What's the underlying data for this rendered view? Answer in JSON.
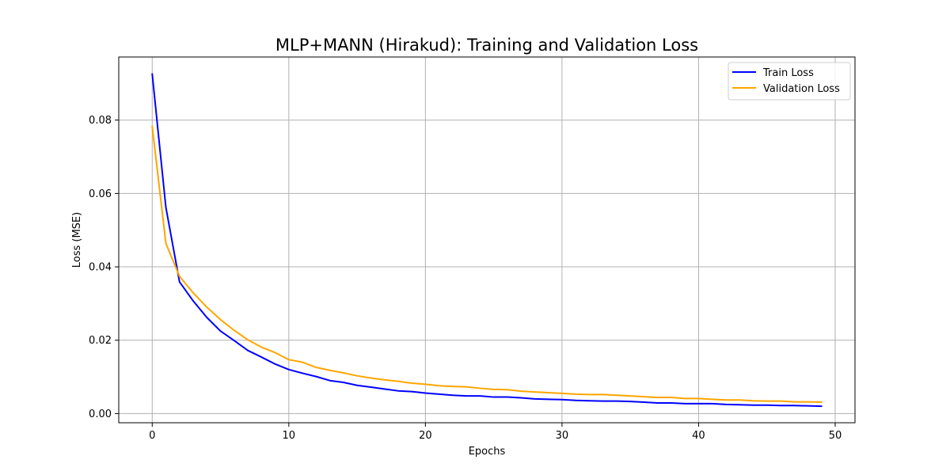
{
  "chart_data": {
    "type": "line",
    "title": "MLP+MANN (Hirakud): Training and Validation Loss",
    "xlabel": "Epochs",
    "ylabel": "Loss (MSE)",
    "xlim": [
      -2.45,
      51.45
    ],
    "ylim": [
      -0.0025,
      0.0972
    ],
    "grid": true,
    "legend_position": "top-right",
    "x_ticks": [
      0,
      10,
      20,
      30,
      40,
      50
    ],
    "x_tick_labels": [
      "0",
      "10",
      "20",
      "30",
      "40",
      "50"
    ],
    "y_ticks": [
      0.0,
      0.02,
      0.04,
      0.06,
      0.08
    ],
    "y_tick_labels": [
      "0.00",
      "0.02",
      "0.04",
      "0.06",
      "0.08"
    ],
    "x": [
      0,
      1,
      2,
      3,
      4,
      5,
      6,
      7,
      8,
      9,
      10,
      11,
      12,
      13,
      14,
      15,
      16,
      17,
      18,
      19,
      20,
      21,
      22,
      23,
      24,
      25,
      26,
      27,
      28,
      29,
      30,
      31,
      32,
      33,
      34,
      35,
      36,
      37,
      38,
      39,
      40,
      41,
      42,
      43,
      44,
      45,
      46,
      47,
      48,
      49
    ],
    "series": [
      {
        "name": "Train Loss",
        "color": "#0000ff",
        "values": [
          0.0926,
          0.0562,
          0.0359,
          0.0307,
          0.0262,
          0.0225,
          0.0199,
          0.0172,
          0.0154,
          0.0135,
          0.012,
          0.011,
          0.0101,
          0.009,
          0.0085,
          0.0077,
          0.0072,
          0.0067,
          0.0062,
          0.006,
          0.0056,
          0.0053,
          0.005,
          0.0048,
          0.0048,
          0.0045,
          0.0045,
          0.0043,
          0.004,
          0.0039,
          0.0038,
          0.0036,
          0.0035,
          0.0034,
          0.0034,
          0.0033,
          0.0031,
          0.0029,
          0.0029,
          0.0027,
          0.0027,
          0.0027,
          0.0025,
          0.0024,
          0.0023,
          0.0023,
          0.0022,
          0.0022,
          0.0021,
          0.002
        ]
      },
      {
        "name": "Validation Loss",
        "color": "#ffa500",
        "values": [
          0.0783,
          0.0464,
          0.0374,
          0.0329,
          0.029,
          0.0256,
          0.0227,
          0.0201,
          0.0181,
          0.0166,
          0.0147,
          0.014,
          0.0126,
          0.0118,
          0.0111,
          0.0103,
          0.0097,
          0.0092,
          0.0088,
          0.0083,
          0.008,
          0.0076,
          0.0074,
          0.0073,
          0.0069,
          0.0066,
          0.0065,
          0.0061,
          0.0059,
          0.0057,
          0.0055,
          0.0053,
          0.0052,
          0.0052,
          0.005,
          0.0048,
          0.0046,
          0.0044,
          0.0044,
          0.0041,
          0.0041,
          0.0039,
          0.0037,
          0.0037,
          0.0035,
          0.0034,
          0.0034,
          0.0032,
          0.0032,
          0.0031
        ]
      }
    ]
  }
}
